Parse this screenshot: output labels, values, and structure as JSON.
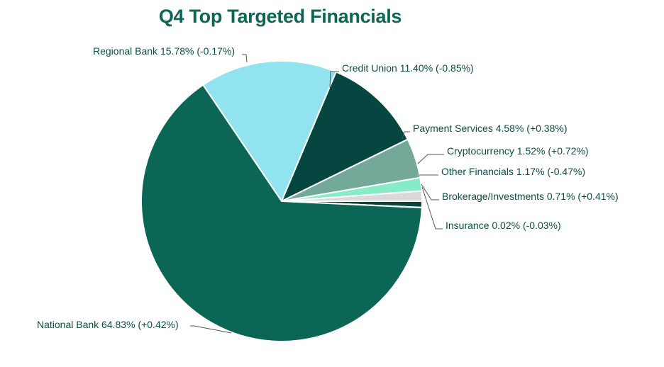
{
  "chart_data": {
    "type": "pie",
    "title": "Q4 Top Targeted Financials",
    "slices": [
      {
        "label": "Regional Bank",
        "value": 15.78,
        "change": "-0.17%",
        "text": "Regional Bank 15.78% (-0.17%)",
        "color": "#92e3f0"
      },
      {
        "label": "Credit Union",
        "value": 11.4,
        "change": "-0.85%",
        "text": "Credit Union 11.40% (-0.85%)",
        "color": "#064641"
      },
      {
        "label": "Payment Services",
        "value": 4.58,
        "change": "+0.38%",
        "text": "Payment Services 4.58% (+0.38%)",
        "color": "#74a899"
      },
      {
        "label": "Cryptocurrency",
        "value": 1.52,
        "change": "+0.72%",
        "text": "Cryptocurrency 1.52% (+0.72%)",
        "color": "#86ecc6"
      },
      {
        "label": "Other Financials",
        "value": 1.17,
        "change": "-0.47%",
        "text": "Other Financials 1.17% (-0.47%)",
        "color": "#d9d9d9"
      },
      {
        "label": "Brokerage/Investments",
        "value": 0.71,
        "change": "+0.41%",
        "text": "Brokerage/Investments 0.71% (+0.41%)",
        "color": "#05473d"
      },
      {
        "label": "Insurance",
        "value": 0.02,
        "change": "-0.03%",
        "text": "Insurance 0.02% (-0.03%)",
        "color": "#0a5a4e"
      },
      {
        "label": "National Bank",
        "value": 64.83,
        "change": "+0.42%",
        "text": "National Bank 64.83% (+0.42%)",
        "color": "#0b6655"
      }
    ]
  }
}
